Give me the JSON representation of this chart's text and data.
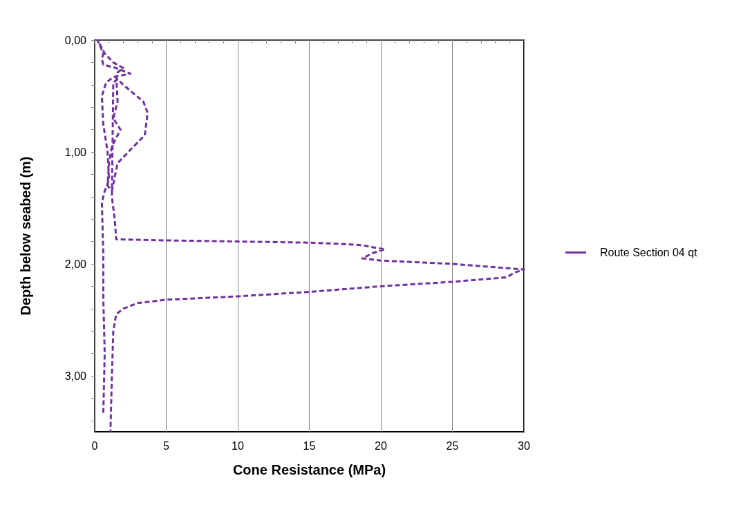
{
  "chart_data": {
    "type": "line",
    "xlabel": "Cone Resistance (MPa)",
    "ylabel": "Depth below seabed (m)",
    "series": [
      {
        "name": "Route Section 04 qt",
        "color": "#7030a0",
        "x": [
          0.6,
          0.7,
          0.6,
          0.6,
          0.5,
          0.7,
          1.0,
          0.9,
          0.6,
          0.5,
          0.8,
          1.3,
          2.5,
          1.5,
          0.6,
          0.5,
          0.6,
          0.2,
          0.7,
          1.3,
          2.0,
          1.5,
          1.6,
          1.3,
          1.8,
          1.2,
          1.0,
          0.9,
          1.2,
          1.6,
          2.5,
          3.5,
          3.7,
          3.4,
          2.0,
          1.6,
          1.3,
          1.2,
          1.4,
          1.5,
          5,
          10,
          15,
          18.5,
          20.3,
          19.5,
          18.7,
          20,
          25,
          30,
          29.3,
          28.8,
          25,
          20,
          15,
          10,
          5,
          3,
          2,
          1.5,
          1.3,
          1.2,
          1.1
        ],
        "values": [
          3.33,
          2.8,
          2.3,
          1.9,
          1.45,
          1.35,
          1.25,
          1.0,
          0.75,
          0.5,
          0.38,
          0.33,
          0.3,
          0.25,
          0.22,
          0.17,
          0.12,
          0.0,
          0.12,
          0.2,
          0.25,
          0.3,
          0.55,
          0.7,
          0.8,
          0.95,
          1.1,
          1.3,
          1.35,
          1.1,
          0.98,
          0.85,
          0.65,
          0.55,
          0.4,
          0.35,
          0.38,
          1.4,
          1.6,
          1.78,
          1.79,
          1.8,
          1.81,
          1.83,
          1.87,
          1.9,
          1.95,
          1.97,
          2.0,
          2.05,
          2.08,
          2.12,
          2.16,
          2.2,
          2.25,
          2.29,
          2.32,
          2.35,
          2.4,
          2.45,
          2.6,
          3.0,
          3.5
        ]
      }
    ],
    "xlim": [
      0,
      30
    ],
    "xticks": [
      0,
      {
        "value": 1,
        "label": null
      },
      {
        "value": 2,
        "label": null
      },
      {
        "value": 3,
        "label": null
      },
      {
        "value": 4,
        "label": null
      },
      5,
      {
        "value": 6,
        "label": null
      },
      {
        "value": 7,
        "label": null
      },
      {
        "value": 8,
        "label": null
      },
      {
        "value": 9,
        "label": null
      },
      10,
      {
        "value": 11,
        "label": null
      },
      {
        "value": 12,
        "label": null
      },
      {
        "value": 13,
        "label": null
      },
      {
        "value": 14,
        "label": null
      },
      15,
      {
        "value": 16,
        "label": null
      },
      {
        "value": 17,
        "label": null
      },
      {
        "value": 18,
        "label": null
      },
      {
        "value": 19,
        "label": null
      },
      20,
      {
        "value": 21,
        "label": null
      },
      {
        "value": 22,
        "label": null
      },
      {
        "value": 23,
        "label": null
      },
      {
        "value": 24,
        "label": null
      },
      25,
      {
        "value": 26,
        "label": null
      },
      {
        "value": 27,
        "label": null
      },
      {
        "value": 28,
        "label": null
      },
      {
        "value": 29,
        "label": null
      },
      30
    ],
    "ylim": [
      3.5,
      0
    ],
    "yticks": [
      {
        "value": 0,
        "label": "0,00"
      },
      {
        "value": 0.2,
        "label": null
      },
      {
        "value": 0.4,
        "label": null
      },
      {
        "value": 0.6,
        "label": null
      },
      {
        "value": 0.8,
        "label": null
      },
      {
        "value": 1,
        "label": "1,00"
      },
      {
        "value": 1.2,
        "label": null
      },
      {
        "value": 1.4,
        "label": null
      },
      {
        "value": 1.6,
        "label": null
      },
      {
        "value": 1.8,
        "label": null
      },
      {
        "value": 2,
        "label": "2,00"
      },
      {
        "value": 2.2,
        "label": null
      },
      {
        "value": 2.4,
        "label": null
      },
      {
        "value": 2.6,
        "label": null
      },
      {
        "value": 2.8,
        "label": null
      },
      {
        "value": 3,
        "label": "3,00"
      },
      {
        "value": 3.2,
        "label": null
      },
      {
        "value": 3.4,
        "label": null
      }
    ],
    "grid": "x",
    "legend": "right",
    "marker": "none",
    "line_style": "dashed"
  }
}
